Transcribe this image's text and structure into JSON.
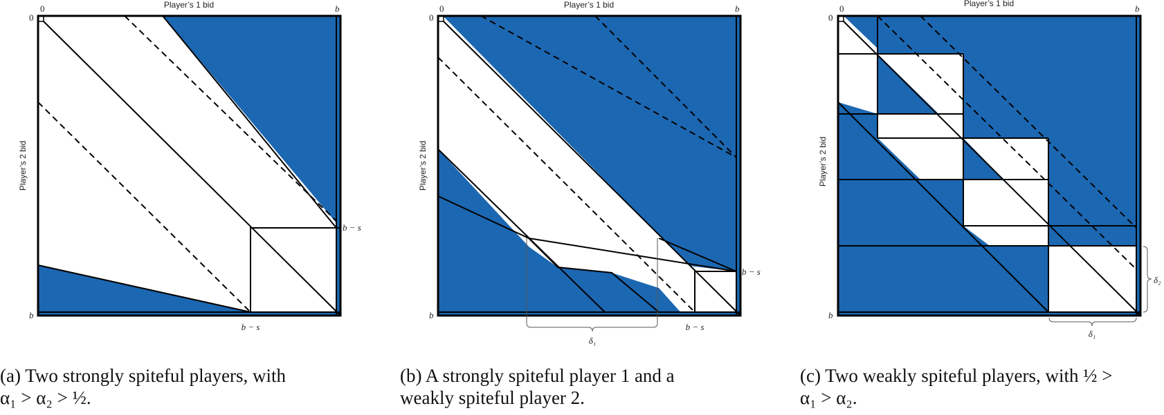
{
  "colors": {
    "fill": "#1c67b1",
    "line": "#000000",
    "background": "#ffffff"
  },
  "panels": [
    {
      "id": "a",
      "labels": {
        "x_axis_title": "Player’s 1 bid",
        "y_axis_title": "Player’s 2 bid",
        "origin": "0",
        "x_end": "b",
        "y_end": "b",
        "y_mark": "b − s",
        "x_mark": "b − s"
      },
      "caption": {
        "line1": "(a) Two strongly spiteful players, with",
        "line2": "α₁ > α₂ > ½."
      }
    },
    {
      "id": "b",
      "labels": {
        "x_axis_title": "Player’s 1 bid",
        "y_axis_title": "Player’s 2 bid",
        "origin": "0",
        "x_end": "b",
        "y_end": "b",
        "y_mark": "b − s",
        "x_mark": "b − s",
        "delta_x": "δ₁"
      },
      "caption": {
        "line1": "(b) A strongly spiteful player 1 and a",
        "line2": "weakly spiteful player 2."
      }
    },
    {
      "id": "c",
      "labels": {
        "x_axis_title": "Player’s 1 bid",
        "y_axis_title": "Player’s 2 bid",
        "origin": "0",
        "x_end": "b",
        "y_end": "b",
        "delta_x": "δ₁",
        "delta_y": "δ₂"
      },
      "caption": {
        "line1": "(c) Two weakly spiteful players, with ½ >",
        "line2": "α₁ > α₂."
      }
    }
  ]
}
